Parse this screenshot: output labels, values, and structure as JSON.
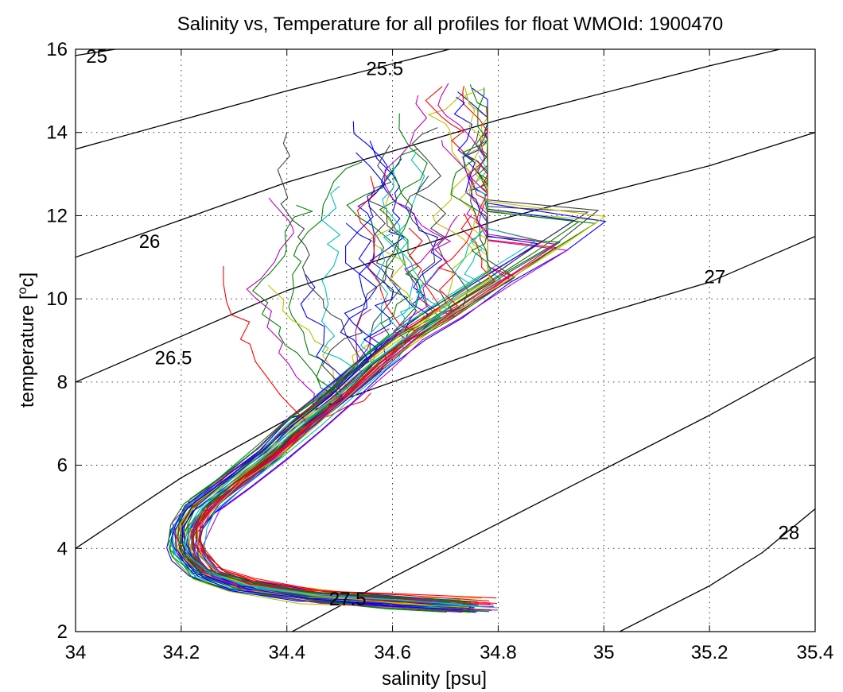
{
  "chart_data": {
    "type": "line",
    "title": "Salinity vs, Temperature for all profiles for float WMOId: 1900470",
    "xlabel": "salinity [psu]",
    "ylabel_main": "temperature [",
    "ylabel_sup": "o",
    "ylabel_tail": "c]",
    "xlim": [
      34,
      35.4
    ],
    "ylim": [
      2,
      16
    ],
    "grid": true,
    "grid_style": "dotted",
    "x_ticks": [
      34,
      34.2,
      34.4,
      34.6,
      34.8,
      35,
      35.2,
      35.4
    ],
    "x_tick_labels": [
      "34",
      "34.2",
      "34.4",
      "34.6",
      "34.8",
      "35",
      "35.2",
      "35.4"
    ],
    "y_ticks": [
      2,
      4,
      6,
      8,
      10,
      12,
      14,
      16
    ],
    "y_tick_labels": [
      "2",
      "4",
      "6",
      "8",
      "10",
      "12",
      "14",
      "16"
    ],
    "profile_colors": [
      "#0000ff",
      "#008000",
      "#ff0000",
      "#00bfbf",
      "#bf00bf",
      "#bfbf00",
      "#404040"
    ],
    "density_contours": [
      {
        "label": "25",
        "points": [
          [
            34,
            15.85
          ],
          [
            34.3,
            16.45
          ]
        ],
        "label_at": [
          34.02,
          15.85
        ]
      },
      {
        "label": "25.5",
        "points": [
          [
            34,
            13.6
          ],
          [
            34.4,
            15.0
          ],
          [
            34.8,
            16.3
          ],
          [
            35.0,
            16.9
          ]
        ],
        "label_at": [
          34.55,
          15.55
        ]
      },
      {
        "label": "26",
        "points": [
          [
            34,
            11.0
          ],
          [
            34.4,
            12.8
          ],
          [
            34.8,
            14.3
          ],
          [
            35.2,
            15.6
          ],
          [
            35.4,
            16.2
          ]
        ],
        "label_at": [
          34.12,
          11.4
        ]
      },
      {
        "label": "26.5",
        "points": [
          [
            34,
            8.0
          ],
          [
            34.4,
            10.2
          ],
          [
            34.8,
            11.9
          ],
          [
            35.2,
            13.2
          ],
          [
            35.4,
            14.0
          ]
        ],
        "label_at": [
          34.15,
          8.6
        ]
      },
      {
        "label": "27",
        "points": [
          [
            34,
            4.0
          ],
          [
            34.2,
            5.7
          ],
          [
            34.4,
            7.1
          ],
          [
            34.8,
            8.9
          ],
          [
            35.2,
            10.4
          ],
          [
            35.4,
            11.5
          ]
        ],
        "label_at": [
          35.19,
          10.55
        ]
      },
      {
        "label": "27.5",
        "points": [
          [
            34.41,
            2.0
          ],
          [
            34.6,
            3.3
          ],
          [
            34.8,
            4.6
          ],
          [
            35.0,
            5.9
          ],
          [
            35.2,
            7.2
          ],
          [
            35.4,
            8.6
          ]
        ],
        "label_at": [
          34.48,
          2.8
        ]
      },
      {
        "label": "28",
        "points": [
          [
            35.03,
            2.0
          ],
          [
            35.2,
            3.1
          ],
          [
            35.3,
            3.9
          ],
          [
            35.4,
            4.95
          ]
        ],
        "label_at": [
          35.33,
          4.4
        ]
      }
    ],
    "profile_template": [
      [
        34.74,
        2.62
      ],
      [
        34.6,
        2.72
      ],
      [
        34.45,
        2.85
      ],
      [
        34.32,
        3.1
      ],
      [
        34.25,
        3.4
      ],
      [
        34.22,
        3.8
      ],
      [
        34.21,
        4.1
      ],
      [
        34.215,
        4.5
      ],
      [
        34.24,
        5.0
      ],
      [
        34.3,
        5.6
      ],
      [
        34.37,
        6.3
      ],
      [
        34.43,
        7.0
      ],
      [
        34.5,
        7.7
      ],
      [
        34.56,
        8.4
      ],
      [
        34.63,
        9.1
      ],
      [
        34.7,
        9.7
      ],
      [
        34.8,
        10.5
      ],
      [
        34.9,
        11.3
      ],
      [
        34.98,
        12.0
      ]
    ],
    "profile_count": 60,
    "mixed_layer_region": {
      "salinity_range": [
        34.28,
        34.78
      ],
      "temperature_range": [
        8.0,
        15.2
      ]
    }
  }
}
